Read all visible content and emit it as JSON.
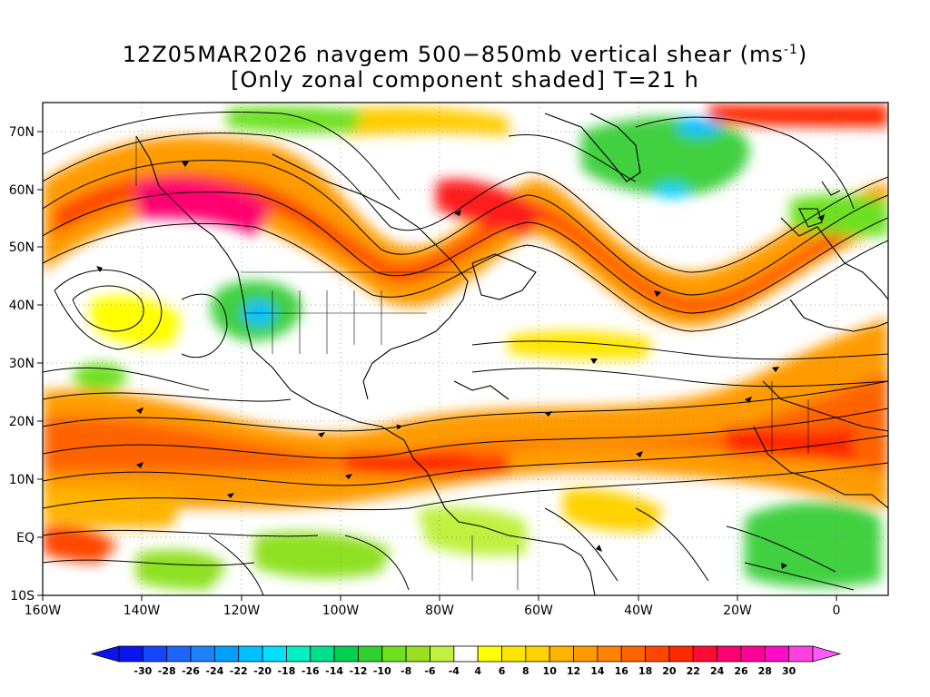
{
  "title": {
    "line1_prefix": "12Z05MAR2026 navgem 500−850mb vertical shear (ms",
    "line1_sup": "-1",
    "line1_suffix": ")",
    "line2": "[Only zonal component shaded] T=21 h"
  },
  "map": {
    "lon_range": [
      -160,
      10
    ],
    "lat_range": [
      -10,
      75
    ],
    "lon_ticks": [
      "160W",
      "140W",
      "120W",
      "100W",
      "80W",
      "60W",
      "40W",
      "20W",
      "0"
    ],
    "lat_ticks": [
      "10S",
      "EQ",
      "10N",
      "20N",
      "30N",
      "40N",
      "50N",
      "60N",
      "70N"
    ],
    "fill_colors": {
      "land_outline": "#000000",
      "positive_low": "#ffff00",
      "positive_mid": "#ff8c00",
      "positive_high": "#ff1a1a",
      "positive_max": "#ff0090",
      "negative_low": "#a0e040",
      "negative_mid": "#40d040",
      "negative_high": "#00c0ff",
      "neutral": "#ffffff"
    }
  },
  "colorbar": {
    "labels": [
      "-30",
      "-28",
      "-26",
      "-24",
      "-22",
      "-20",
      "-18",
      "-16",
      "-14",
      "-12",
      "-10",
      "-8",
      "-6",
      "-4",
      "4",
      "6",
      "8",
      "10",
      "12",
      "14",
      "16",
      "18",
      "20",
      "22",
      "24",
      "26",
      "28",
      "30"
    ],
    "colors": [
      "#0a14f0",
      "#1446ff",
      "#1e64ff",
      "#1e82ff",
      "#00a0ff",
      "#00c0ff",
      "#00e0ff",
      "#00f0c0",
      "#00e08c",
      "#00d050",
      "#30d030",
      "#6ee020",
      "#98e020",
      "#c0f040",
      "#ffffff",
      "#ffff00",
      "#ffe600",
      "#ffd200",
      "#ffb400",
      "#ff9b00",
      "#ff8200",
      "#ff6400",
      "#ff4600",
      "#ff2800",
      "#ff0a32",
      "#ff0070",
      "#ff0098",
      "#ff0ac8",
      "#ff40e0"
    ],
    "left_arrow_color": "#0a14f0",
    "right_arrow_color": "#ff5aff"
  }
}
